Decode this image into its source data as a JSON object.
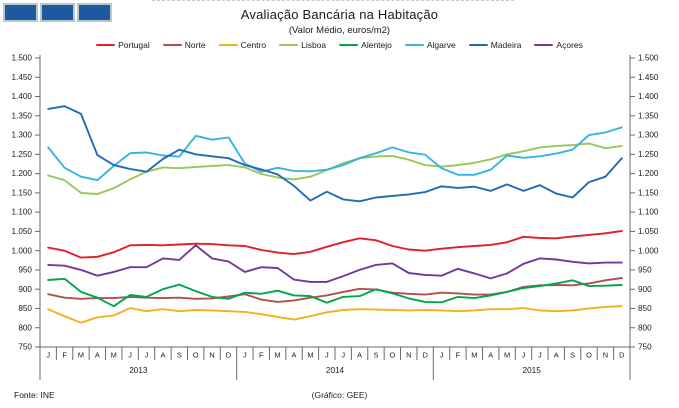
{
  "title": "Avaliação Bancária na Habitação",
  "subtitle": "(Valor Médio, euros/m2)",
  "footer": {
    "source": "Fonte: INE",
    "credit": "(Gráfico: GEE)"
  },
  "chart_data": {
    "type": "line",
    "title": "Avaliação Bancária na Habitação",
    "subtitle": "(Valor Médio, euros/m2)",
    "ylabel": "euros/m2",
    "ylim": [
      750,
      1500
    ],
    "ytick_step": 50,
    "grid": false,
    "legend_position": "top",
    "month_labels": [
      "J",
      "F",
      "M",
      "A",
      "M",
      "J",
      "J",
      "A",
      "S",
      "O",
      "N",
      "D",
      "J",
      "F",
      "M",
      "A",
      "M",
      "J",
      "J",
      "A",
      "S",
      "O",
      "N",
      "D",
      "J",
      "F",
      "M",
      "A",
      "M",
      "J",
      "J",
      "A",
      "S",
      "O",
      "N",
      "D"
    ],
    "year_labels": [
      "2013",
      "2014",
      "2015"
    ],
    "series": [
      {
        "name": "Portugal",
        "color": "#e31e24",
        "values": [
          1008,
          1000,
          982,
          984,
          996,
          1014,
          1015,
          1014,
          1016,
          1018,
          1017,
          1014,
          1012,
          1002,
          995,
          991,
          997,
          1010,
          1022,
          1032,
          1027,
          1012,
          1003,
          1000,
          1005,
          1009,
          1012,
          1015,
          1022,
          1036,
          1033,
          1032,
          1037,
          1041,
          1045,
          1051
        ]
      },
      {
        "name": "Norte",
        "color": "#b0504a",
        "values": [
          887,
          878,
          875,
          877,
          877,
          880,
          878,
          877,
          878,
          875,
          876,
          881,
          887,
          873,
          867,
          871,
          878,
          884,
          893,
          901,
          899,
          891,
          888,
          886,
          891,
          889,
          886,
          886,
          893,
          906,
          910,
          911,
          910,
          915,
          923,
          929
        ]
      },
      {
        "name": "Centro",
        "color": "#f2b01e",
        "values": [
          848,
          830,
          813,
          827,
          832,
          851,
          843,
          848,
          843,
          846,
          845,
          843,
          841,
          835,
          828,
          821,
          830,
          840,
          846,
          848,
          847,
          846,
          845,
          846,
          845,
          843,
          845,
          848,
          848,
          851,
          845,
          843,
          845,
          850,
          854,
          856
        ]
      },
      {
        "name": "Lisboa",
        "color": "#9bc65c",
        "values": [
          1195,
          1183,
          1150,
          1147,
          1162,
          1185,
          1205,
          1216,
          1214,
          1217,
          1220,
          1222,
          1216,
          1199,
          1190,
          1185,
          1192,
          1209,
          1227,
          1240,
          1244,
          1246,
          1236,
          1222,
          1218,
          1222,
          1228,
          1237,
          1250,
          1258,
          1268,
          1272,
          1274,
          1278,
          1266,
          1272
        ]
      },
      {
        "name": "Alentejo",
        "color": "#00a551",
        "values": [
          924,
          927,
          893,
          878,
          856,
          885,
          880,
          900,
          912,
          895,
          880,
          875,
          891,
          888,
          896,
          884,
          882,
          865,
          880,
          882,
          900,
          889,
          876,
          867,
          866,
          880,
          877,
          884,
          893,
          903,
          908,
          915,
          923,
          908,
          909,
          911
        ]
      },
      {
        "name": "Algarve",
        "color": "#36b3e3",
        "values": [
          1268,
          1215,
          1192,
          1183,
          1220,
          1253,
          1255,
          1247,
          1244,
          1298,
          1288,
          1294,
          1226,
          1205,
          1215,
          1207,
          1206,
          1210,
          1222,
          1240,
          1253,
          1268,
          1255,
          1249,
          1214,
          1197,
          1197,
          1210,
          1247,
          1241,
          1245,
          1252,
          1262,
          1300,
          1307,
          1320
        ]
      },
      {
        "name": "Madeira",
        "color": "#1f6cb4",
        "values": [
          1368,
          1375,
          1355,
          1248,
          1222,
          1212,
          1205,
          1238,
          1262,
          1250,
          1245,
          1240,
          1222,
          1211,
          1198,
          1168,
          1130,
          1153,
          1133,
          1128,
          1138,
          1142,
          1146,
          1152,
          1167,
          1163,
          1166,
          1155,
          1172,
          1155,
          1170,
          1148,
          1138,
          1178,
          1192,
          1240
        ]
      },
      {
        "name": "Açores",
        "color": "#71379b",
        "values": [
          963,
          961,
          950,
          935,
          945,
          957,
          957,
          980,
          976,
          1014,
          980,
          972,
          945,
          957,
          955,
          925,
          919,
          919,
          934,
          950,
          963,
          967,
          942,
          937,
          935,
          953,
          941,
          928,
          941,
          966,
          980,
          977,
          971,
          967,
          969,
          969
        ]
      }
    ]
  }
}
